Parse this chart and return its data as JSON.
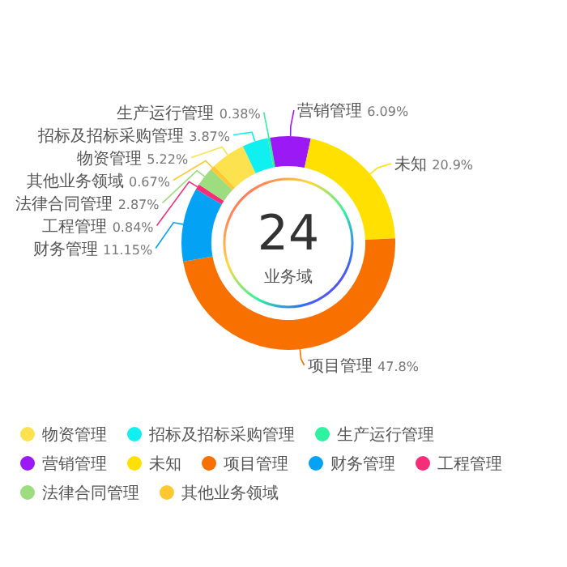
{
  "chart_data": {
    "type": "donut",
    "categories": [
      "物资管理",
      "招标及招标采购管理",
      "生产运行管理",
      "营销管理",
      "未知",
      "项目管理",
      "财务管理",
      "工程管理",
      "法律合同管理",
      "其他业务领域"
    ],
    "values": [
      5.22,
      3.87,
      0.38,
      6.09,
      20.9,
      47.8,
      11.15,
      0.84,
      2.87,
      0.67
    ],
    "value_labels": [
      "5.22%",
      "3.87%",
      "0.38%",
      "6.09%",
      "20.9%",
      "47.8%",
      "11.15%",
      "0.84%",
      "2.87%",
      "0.67%"
    ],
    "colors": [
      "#fde24f",
      "#10f0f0",
      "#2ef2a0",
      "#9b19f5",
      "#ffe000",
      "#f77000",
      "#04a2f5",
      "#f72d7a",
      "#9edc80",
      "#ffc830"
    ],
    "annotations": [
      "24",
      "业务域"
    ],
    "legend": "bottom"
  }
}
